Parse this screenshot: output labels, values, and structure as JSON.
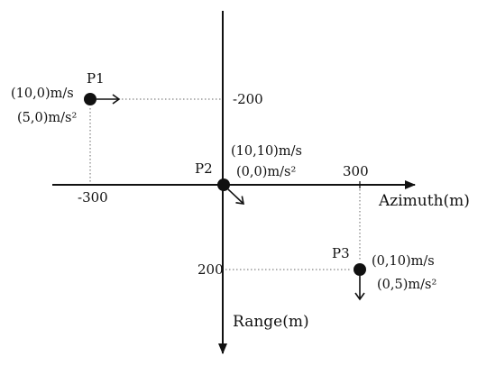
{
  "colors": {
    "ink": "#111111",
    "guide": "#666666",
    "background": "#ffffff"
  },
  "axes": {
    "azimuth_label": "Azimuth(m)",
    "range_label": "Range(m)"
  },
  "ticks": {
    "x_neg": "-300",
    "x_pos": "300",
    "y_neg": "-200",
    "y_pos": "200"
  },
  "points": {
    "p1": {
      "name": "P1",
      "azimuth": -300,
      "range": -200,
      "velocity": "(10,0)m/s",
      "acceleration": "(5,0)m/s²"
    },
    "p2": {
      "name": "P2",
      "azimuth": 0,
      "range": 0,
      "velocity": "(10,10)m/s",
      "acceleration": "(0,0)m/s²"
    },
    "p3": {
      "name": "P3",
      "azimuth": 300,
      "range": 200,
      "velocity": "(0,10)m/s",
      "acceleration": "(0,5)m/s²"
    }
  }
}
